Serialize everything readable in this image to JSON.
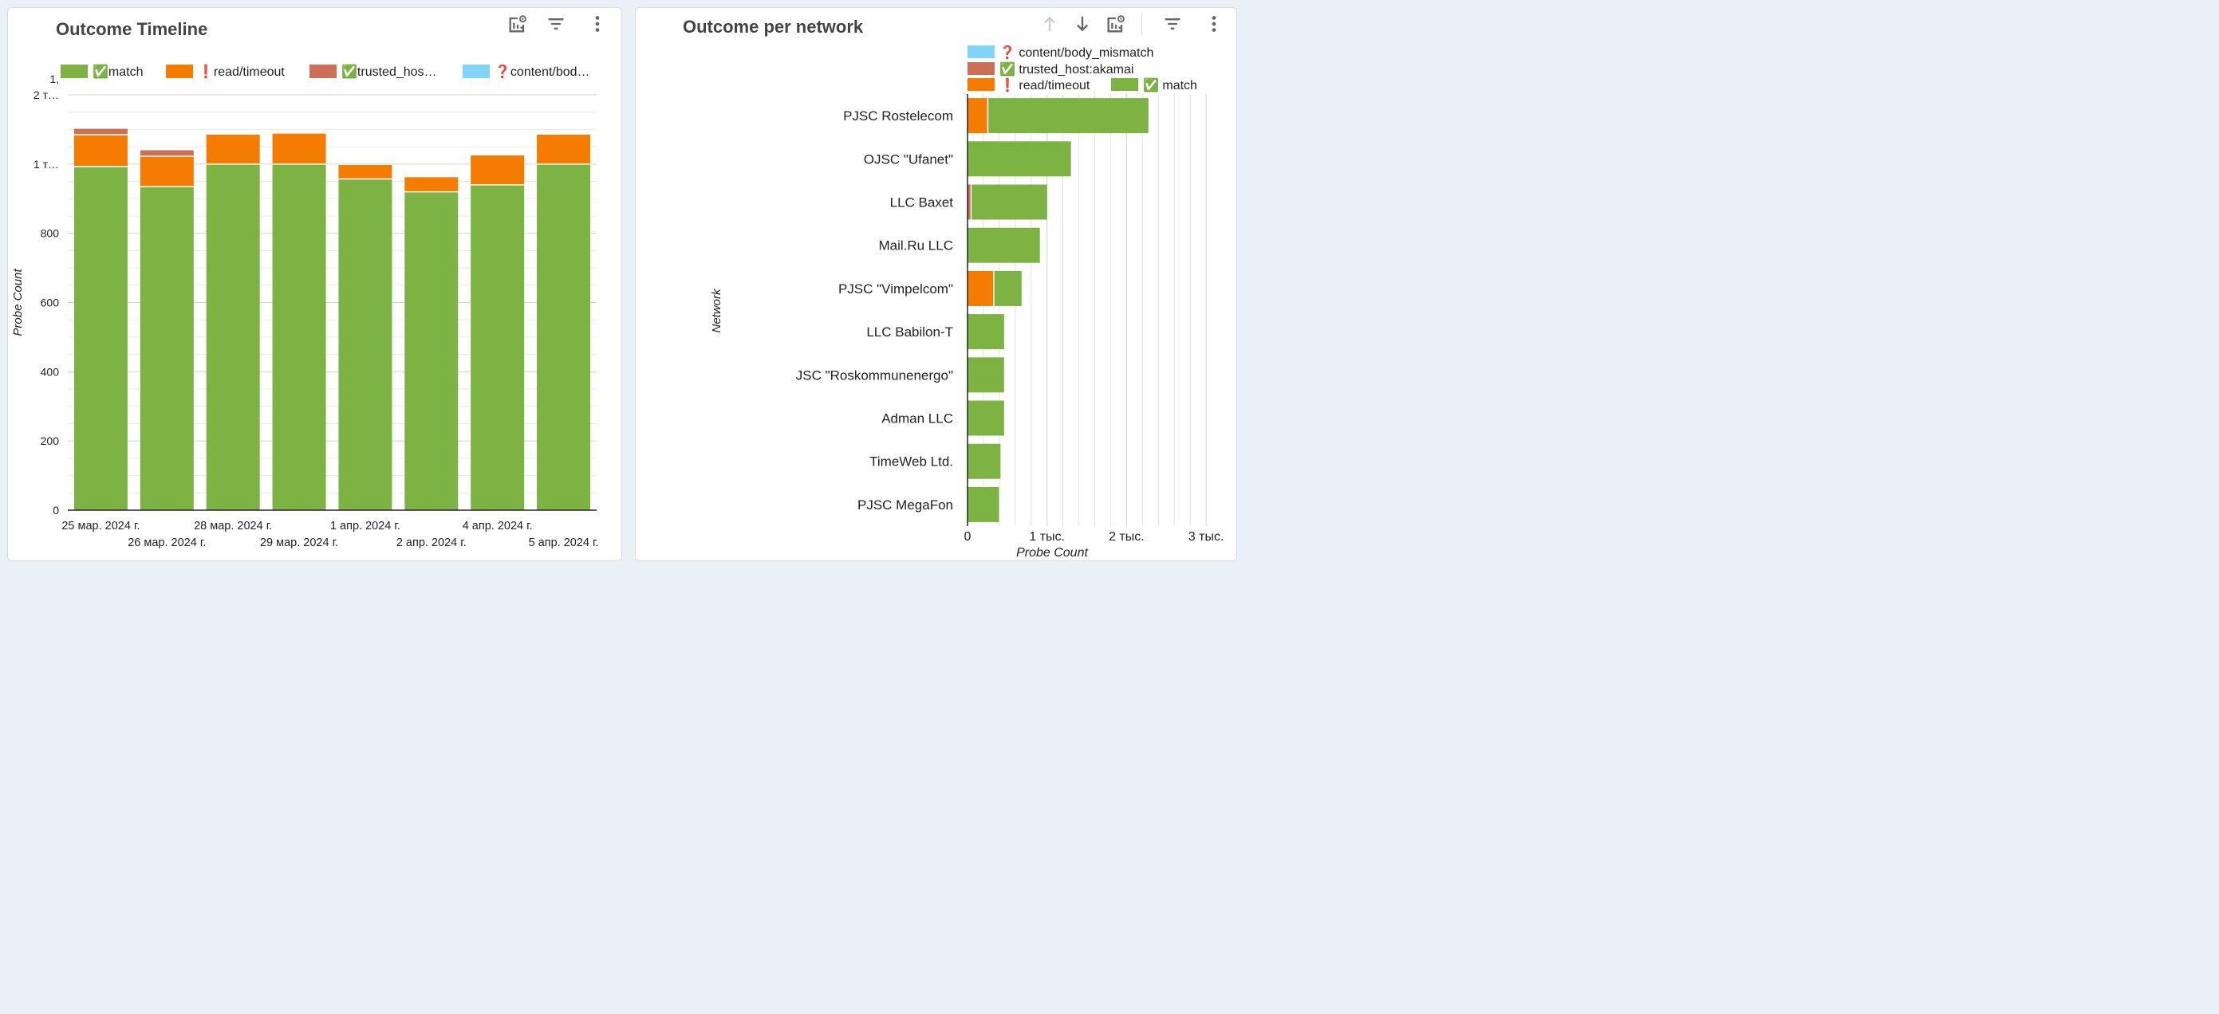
{
  "left_panel": {
    "title": "Outcome Timeline"
  },
  "right_panel": {
    "title": "Outcome per network"
  },
  "legend_icons": {
    "match": "✅",
    "read/timeout": "❗",
    "trusted_host:akamai": "✅",
    "content/body_mismatch": "❓"
  },
  "colors": {
    "match": "#7cb342",
    "read/timeout": "#f57c00",
    "trusted_host:akamai": "#cd6e57",
    "content/body_mismatch": "#81d4fa"
  },
  "chart_data": [
    {
      "type": "bar",
      "stacked": true,
      "orientation": "vertical",
      "title": "Outcome Timeline",
      "ylabel": "Probe Count",
      "xlabel": "",
      "ylim": [
        0,
        1200
      ],
      "yticks": [
        {
          "value": 0,
          "label": "0"
        },
        {
          "value": 200,
          "label": "200"
        },
        {
          "value": 400,
          "label": "400"
        },
        {
          "value": 600,
          "label": "600"
        },
        {
          "value": 800,
          "label": "800"
        },
        {
          "value": 1000,
          "label": "1 т…"
        },
        {
          "value": 1200,
          "label": "1,\n2 т…"
        }
      ],
      "grid": true,
      "legend_position": "top",
      "legend": [
        "match",
        "read/timeout",
        "trusted_hos…",
        "content/bod…"
      ],
      "categories": [
        "25 мар. 2024 г.",
        "26 мар. 2024 г.",
        "28 мар. 2024 г.",
        "29 мар. 2024 г.",
        "1 апр. 2024 г.",
        "2 апр. 2024 г.",
        "4 апр. 2024 г.",
        "5 апр. 2024 г."
      ],
      "series": [
        {
          "name": "match",
          "values": [
            993,
            935,
            1000,
            1000,
            957,
            920,
            940,
            1000
          ]
        },
        {
          "name": "read/timeout",
          "values": [
            92,
            88,
            85,
            88,
            42,
            42,
            85,
            85
          ]
        },
        {
          "name": "trusted_host:akamai",
          "values": [
            17,
            17,
            0,
            0,
            0,
            0,
            0,
            0
          ]
        },
        {
          "name": "content/body_mismatch",
          "values": [
            0,
            0,
            0,
            0,
            3,
            0,
            0,
            0
          ]
        }
      ]
    },
    {
      "type": "bar",
      "stacked": true,
      "orientation": "horizontal",
      "title": "Outcome per network",
      "ylabel": "Network",
      "xlabel": "Probe Count",
      "xlim": [
        0,
        3000
      ],
      "xticks": [
        {
          "value": 0,
          "label": "0"
        },
        {
          "value": 1000,
          "label": "1 тыс."
        },
        {
          "value": 2000,
          "label": "2 тыс."
        },
        {
          "value": 3000,
          "label": "3 тыс."
        }
      ],
      "grid": true,
      "legend_position": "top",
      "legend": [
        "content/body_mismatch",
        "trusted_host:akamai",
        "read/timeout",
        "match"
      ],
      "categories": [
        "PJSC Rostelecom",
        "OJSC \"Ufanet\"",
        "LLC Baxet",
        "Mail.Ru LLC",
        "PJSC \"Vimpelcom\"",
        "LLC Babilon-T",
        "JSC \"Roskommunenergo\"",
        "Adman LLC",
        "TimeWeb Ltd.",
        "PJSC MegaFon"
      ],
      "series": [
        {
          "name": "read/timeout",
          "values": [
            255,
            0,
            0,
            0,
            330,
            0,
            0,
            0,
            0,
            0
          ]
        },
        {
          "name": "trusted_host:akamai",
          "values": [
            0,
            0,
            45,
            0,
            0,
            0,
            0,
            0,
            0,
            0
          ]
        },
        {
          "name": "match",
          "values": [
            2020,
            1300,
            955,
            910,
            350,
            460,
            460,
            460,
            415,
            395
          ]
        },
        {
          "name": "content/body_mismatch",
          "values": [
            0,
            0,
            0,
            0,
            0,
            0,
            0,
            0,
            0,
            0
          ]
        }
      ]
    }
  ]
}
